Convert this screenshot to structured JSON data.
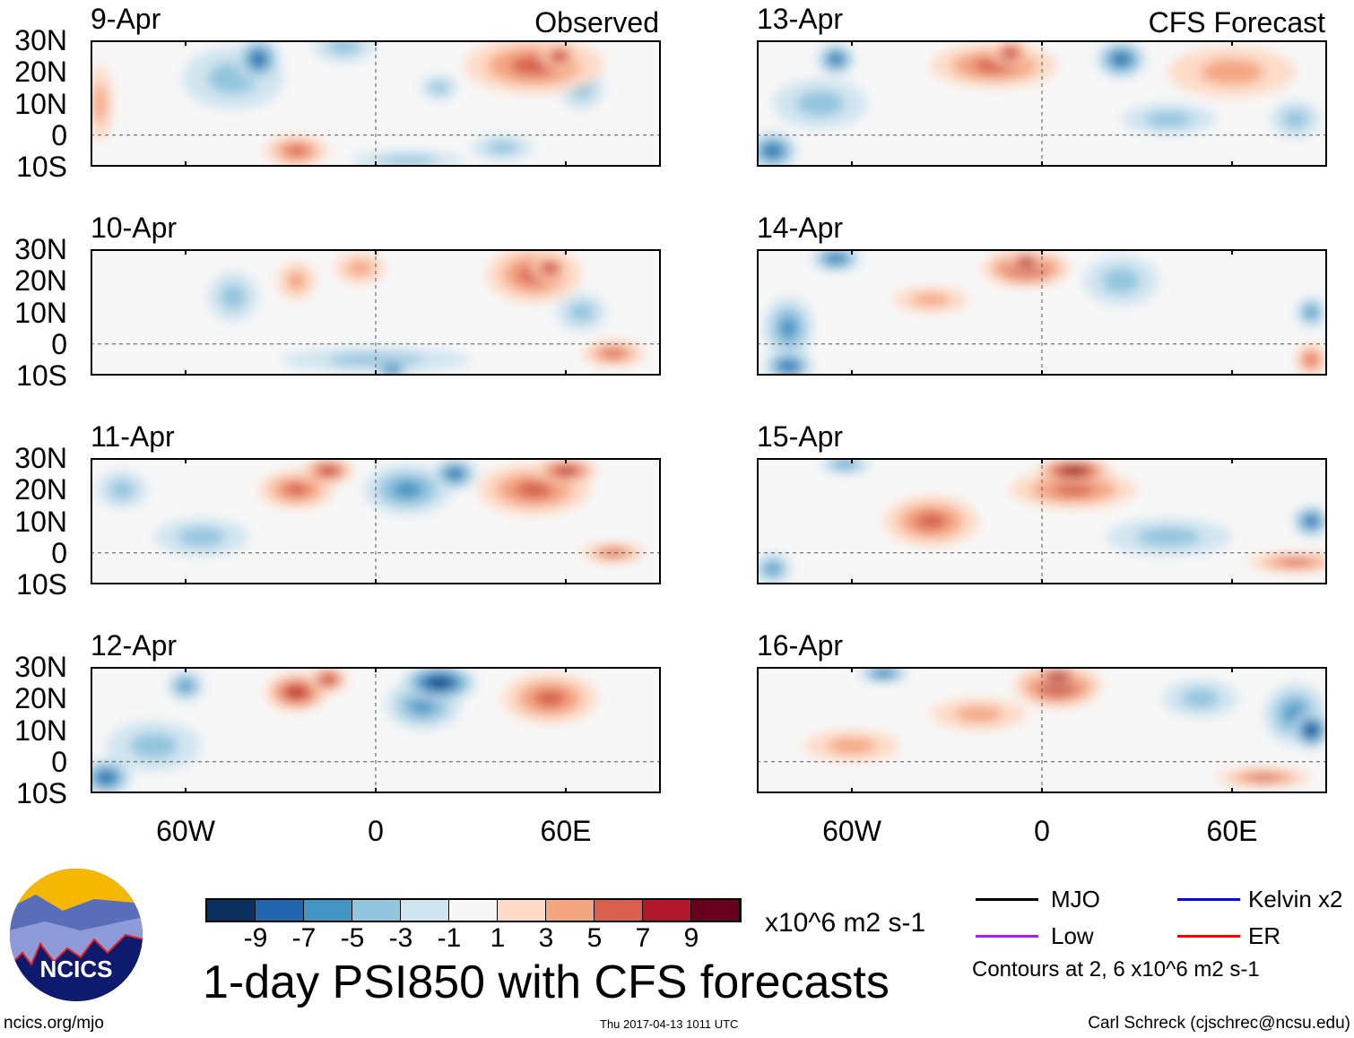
{
  "panels": [
    {
      "date": "9-Apr",
      "label": "Observed",
      "blobs": [
        [
          -37,
          24,
          -6,
          7,
          7
        ],
        [
          -45,
          18,
          -3,
          16,
          10
        ],
        [
          -10,
          28,
          -2,
          10,
          5
        ],
        [
          50,
          22,
          4,
          22,
          9
        ],
        [
          58,
          25,
          6,
          6,
          4
        ],
        [
          65,
          15,
          -3,
          7,
          7
        ],
        [
          -25,
          -5,
          4,
          10,
          5
        ],
        [
          40,
          -4,
          -3,
          10,
          4
        ],
        [
          10,
          -8,
          -3,
          18,
          3
        ],
        [
          -87,
          10,
          2,
          4,
          12
        ],
        [
          20,
          15,
          -3,
          6,
          4
        ]
      ]
    },
    {
      "date": "13-Apr",
      "label": "CFS Forecast",
      "blobs": [
        [
          -65,
          24,
          -6,
          6,
          5
        ],
        [
          -70,
          10,
          -2,
          15,
          8
        ],
        [
          -15,
          22,
          5,
          20,
          7
        ],
        [
          -10,
          26,
          7,
          6,
          4
        ],
        [
          25,
          24,
          -6,
          8,
          6
        ],
        [
          -85,
          -5,
          -6,
          8,
          6
        ],
        [
          60,
          20,
          2,
          20,
          8
        ],
        [
          40,
          5,
          -3,
          15,
          5
        ],
        [
          80,
          5,
          -2,
          8,
          6
        ]
      ]
    },
    {
      "date": "10-Apr",
      "label": "",
      "blobs": [
        [
          -45,
          15,
          -3,
          8,
          8
        ],
        [
          -25,
          20,
          3,
          6,
          6
        ],
        [
          50,
          22,
          5,
          15,
          9
        ],
        [
          55,
          24,
          7,
          6,
          4
        ],
        [
          0,
          -5,
          -3,
          30,
          4
        ],
        [
          5,
          -8,
          -6,
          6,
          3
        ],
        [
          75,
          -3,
          5,
          10,
          4
        ],
        [
          -5,
          24,
          3,
          8,
          5
        ],
        [
          65,
          10,
          -2,
          8,
          6
        ]
      ]
    },
    {
      "date": "14-Apr",
      "label": "",
      "blobs": [
        [
          -65,
          27,
          -6,
          8,
          4
        ],
        [
          -80,
          5,
          -4,
          8,
          10
        ],
        [
          -80,
          -7,
          -6,
          8,
          5
        ],
        [
          -5,
          24,
          6,
          14,
          6
        ],
        [
          -5,
          26,
          8,
          6,
          3
        ],
        [
          -35,
          14,
          3,
          12,
          4
        ],
        [
          25,
          20,
          -3,
          12,
          8
        ],
        [
          85,
          10,
          -4,
          5,
          5
        ],
        [
          85,
          -5,
          4,
          5,
          5
        ]
      ]
    },
    {
      "date": "11-Apr",
      "label": "",
      "blobs": [
        [
          -25,
          20,
          5,
          12,
          6
        ],
        [
          -15,
          26,
          6,
          8,
          4
        ],
        [
          25,
          25,
          -7,
          7,
          5
        ],
        [
          10,
          20,
          -4,
          14,
          8
        ],
        [
          60,
          26,
          7,
          10,
          4
        ],
        [
          50,
          20,
          4,
          18,
          8
        ],
        [
          -55,
          5,
          -2,
          15,
          6
        ],
        [
          75,
          0,
          4,
          10,
          3
        ],
        [
          -80,
          20,
          -3,
          8,
          6
        ]
      ]
    },
    {
      "date": "15-Apr",
      "label": "",
      "blobs": [
        [
          -62,
          28,
          -5,
          8,
          3
        ],
        [
          -35,
          10,
          4,
          15,
          8
        ],
        [
          10,
          26,
          8,
          12,
          4
        ],
        [
          10,
          20,
          4,
          20,
          6
        ],
        [
          -85,
          -5,
          -5,
          6,
          5
        ],
        [
          85,
          10,
          -7,
          6,
          5
        ],
        [
          80,
          -3,
          4,
          15,
          3
        ],
        [
          40,
          5,
          -3,
          20,
          6
        ]
      ]
    },
    {
      "date": "12-Apr",
      "label": "",
      "blobs": [
        [
          -60,
          24,
          -5,
          6,
          5
        ],
        [
          -25,
          22,
          6,
          10,
          6
        ],
        [
          -15,
          26,
          7,
          6,
          4
        ],
        [
          20,
          25,
          -8,
          12,
          6
        ],
        [
          15,
          18,
          -5,
          12,
          8
        ],
        [
          -85,
          -5,
          -6,
          8,
          6
        ],
        [
          55,
          20,
          4,
          15,
          8
        ],
        [
          -70,
          5,
          -2,
          15,
          8
        ]
      ]
    },
    {
      "date": "16-Apr",
      "label": "",
      "blobs": [
        [
          -50,
          28,
          -6,
          8,
          3
        ],
        [
          5,
          24,
          7,
          14,
          7
        ],
        [
          5,
          27,
          9,
          8,
          3
        ],
        [
          -20,
          15,
          3,
          15,
          5
        ],
        [
          85,
          10,
          -9,
          6,
          6
        ],
        [
          80,
          15,
          -4,
          10,
          10
        ],
        [
          50,
          20,
          -3,
          12,
          6
        ],
        [
          -60,
          5,
          2,
          15,
          5
        ],
        [
          70,
          -5,
          4,
          15,
          3
        ]
      ]
    }
  ],
  "axes": {
    "lat_labels": [
      "30N",
      "20N",
      "10N",
      "0",
      "10S"
    ],
    "lon_labels": [
      "60W",
      "0",
      "60E"
    ]
  },
  "colorbar": {
    "colors": [
      "#0b2f5f",
      "#2166ac",
      "#4393c3",
      "#92c5de",
      "#d1e5f0",
      "#f7f7f7",
      "#fddbc7",
      "#f4a582",
      "#d6604d",
      "#b2182b",
      "#67001f"
    ],
    "labels": [
      "-9",
      "-7",
      "-5",
      "-3",
      "-1",
      "1",
      "3",
      "5",
      "7",
      "9"
    ],
    "units": "x10^6 m2 s-1"
  },
  "title": "1-day PSI850 with CFS forecasts",
  "legend": {
    "mjo": "MJO",
    "kelvin": "Kelvin x2",
    "low": "Low",
    "er": "ER",
    "contours": "Contours at 2, 6 x10^6 m2 s-1",
    "colors": {
      "mjo": "#000000",
      "kelvin": "#0000ff",
      "low": "#a020f0",
      "er": "#ff0000"
    }
  },
  "logo": "NCICS",
  "footer": {
    "url": "ncics.org/mjo",
    "timestamp": "Thu 2017-04-13 1011 UTC",
    "author": "Carl Schreck (cjschrec@ncsu.edu)"
  }
}
